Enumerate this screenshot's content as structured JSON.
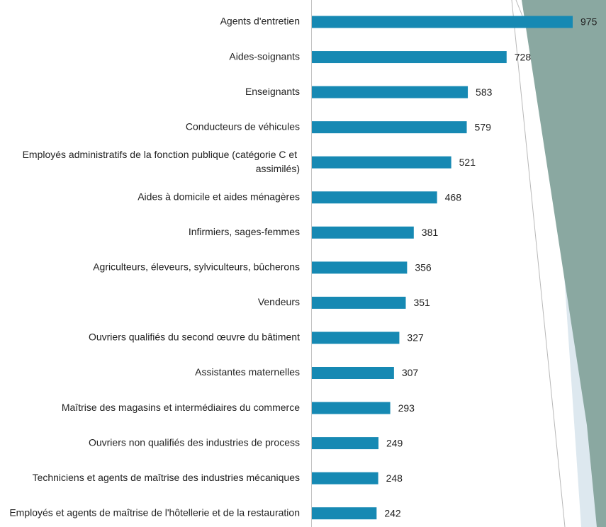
{
  "chart_data": {
    "type": "bar",
    "orientation": "horizontal",
    "color": "#1689b3",
    "categories": [
      "Agents d'entretien",
      "Aides-soignants",
      "Enseignants",
      "Conducteurs de véhicules",
      "Employés administratifs de la fonction publique (catégorie C et assimilés)",
      "Aides à domicile et aides ménagères",
      "Infirmiers, sages-femmes",
      "Agriculteurs, éleveurs, sylviculteurs, bûcherons",
      "Vendeurs",
      "Ouvriers qualifiés du second œuvre du bâtiment",
      "Assistantes maternelles",
      "Maîtrise des magasins et intermédiaires du commerce",
      "Ouvriers non qualifiés des industries de process",
      "Techniciens et agents de maîtrise des industries mécaniques",
      "Employés et agents de maîtrise de l'hôtellerie et de la restauration"
    ],
    "values": [
      975,
      728,
      583,
      579,
      521,
      468,
      381,
      356,
      351,
      327,
      307,
      293,
      249,
      248,
      242
    ]
  }
}
